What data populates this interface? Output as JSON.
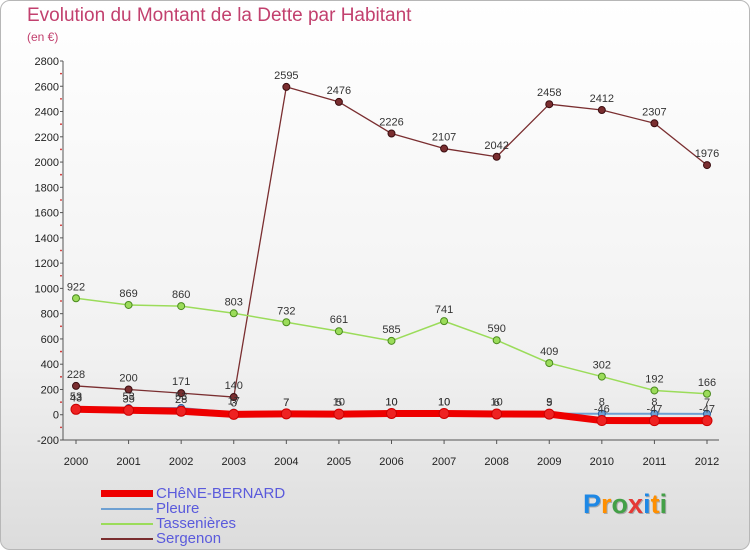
{
  "chart_data": {
    "type": "line",
    "title": "Evolution du Montant de la Dette par Habitant",
    "subtitle": "(en €)",
    "x": [
      "2000",
      "2001",
      "2002",
      "2003",
      "2004",
      "2005",
      "2006",
      "2007",
      "2008",
      "2009",
      "2010",
      "2011",
      "2012"
    ],
    "ylim": [
      -200,
      2800
    ],
    "yticks": [
      -200,
      0,
      200,
      400,
      600,
      800,
      1000,
      1200,
      1400,
      1600,
      1800,
      2000,
      2200,
      2400,
      2600,
      2800
    ],
    "grid": false,
    "legend_position": "bottom-left",
    "series": [
      {
        "name": "CHêNE-BERNARD",
        "color": "#ee0000",
        "values": [
          43,
          35,
          28,
          3,
          7,
          5,
          10,
          10,
          6,
          5,
          -46,
          -47,
          -47
        ],
        "labels": [
          "43",
          "35",
          "28",
          "3",
          "7",
          "5",
          "10",
          "10",
          "6",
          "5",
          "-46",
          "-47",
          "-47"
        ]
      },
      {
        "name": "Pleure",
        "color": "#6ea0d2",
        "values": [
          53,
          53,
          53,
          17,
          7,
          10,
          10,
          10,
          10,
          9,
          8,
          8,
          7
        ],
        "labels": [
          "53",
          "53",
          "53",
          "17",
          "7",
          "10",
          "10",
          "10",
          "10",
          "9",
          "8",
          "8",
          "7"
        ]
      },
      {
        "name": "Tassenières",
        "color": "#9bdc5a",
        "values": [
          922,
          869,
          860,
          803,
          732,
          661,
          585,
          741,
          590,
          409,
          302,
          192,
          166
        ],
        "labels": [
          "922",
          "869",
          "860",
          "803",
          "732",
          "661",
          "585",
          "741",
          "590",
          "409",
          "302",
          "192",
          "166"
        ]
      },
      {
        "name": "Sergenon",
        "color": "#7a2e30",
        "values": [
          228,
          200,
          171,
          140,
          2595,
          2476,
          2226,
          2107,
          2042,
          2458,
          2412,
          2307,
          1976
        ],
        "labels": [
          "228",
          "200",
          "171",
          "140",
          "2595",
          "2476",
          "2226",
          "2107",
          "2042",
          "2458",
          "2412",
          "2307",
          "1976"
        ]
      }
    ]
  },
  "logo": {
    "letters": [
      "P",
      "r",
      "o",
      "x",
      "i",
      "t",
      "i"
    ],
    "colors": [
      "#1e88e5",
      "#ff8f00",
      "#43a047",
      "#e53935",
      "#1e88e5",
      "#ff8f00",
      "#43a047"
    ]
  }
}
